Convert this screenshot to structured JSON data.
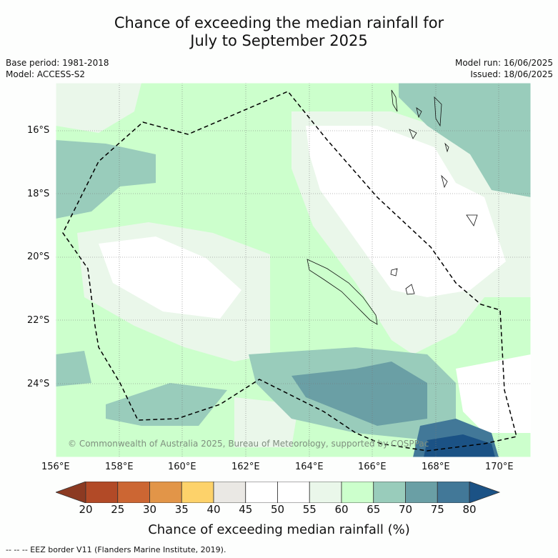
{
  "header": {
    "title_line1": "Chance of exceeding the median rainfall for",
    "title_line2": "July to September 2025",
    "base_period": "Base period: 1981-2018",
    "model": "Model: ACCESS-S2",
    "model_run": "Model run: 16/06/2025",
    "issued": "Issued: 18/06/2025"
  },
  "map": {
    "lat_labels": [
      "16°S",
      "18°S",
      "20°S",
      "22°S",
      "24°S"
    ],
    "lon_labels": [
      "156°E",
      "158°E",
      "160°E",
      "162°E",
      "164°E",
      "166°E",
      "168°E",
      "170°E"
    ],
    "copyright": "© Commonwealth of Australia 2025, Bureau of Meteorology, supported by COSPPac"
  },
  "colorbar": {
    "ticks": [
      "20",
      "25",
      "30",
      "35",
      "40",
      "45",
      "50",
      "55",
      "60",
      "65",
      "70",
      "75",
      "80"
    ],
    "colors": [
      "#8c3a22",
      "#b24a27",
      "#cc6633",
      "#e29548",
      "#fdd26a",
      "#eae8e4",
      "#ffffff",
      "#ffffff",
      "#eaf7ea",
      "#ccffcc",
      "#99ccbb",
      "#6a9fa5",
      "#427898",
      "#1b5285"
    ],
    "title": "Chance of exceeding median rainfall (%)"
  },
  "footer": {
    "eez_legend": "--  --  -- EEZ border V11 (Flanders Marine Institute, 2019)."
  }
}
